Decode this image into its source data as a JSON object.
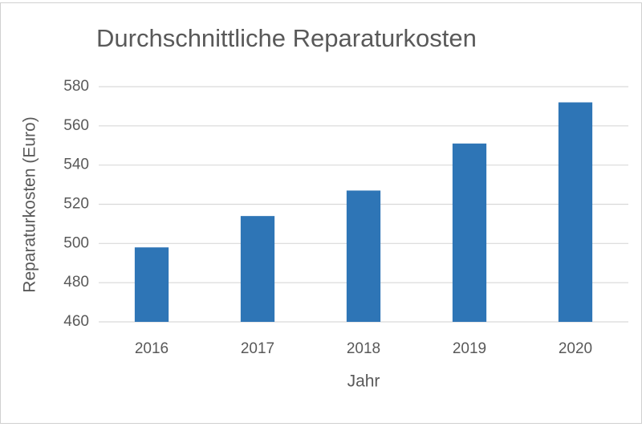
{
  "chart_data": {
    "type": "bar",
    "title": "Durchschnittliche Reparaturkosten",
    "x_label": "Jahr",
    "y_label": "Reparaturkosten (Euro)",
    "categories": [
      "2016",
      "2017",
      "2018",
      "2019",
      "2020"
    ],
    "values": [
      498,
      514,
      527,
      551,
      572
    ],
    "color": "#2e75b6",
    "ylim": [
      460,
      580
    ],
    "yticks": [
      460,
      480,
      500,
      520,
      540,
      560,
      580
    ],
    "grid": true
  }
}
